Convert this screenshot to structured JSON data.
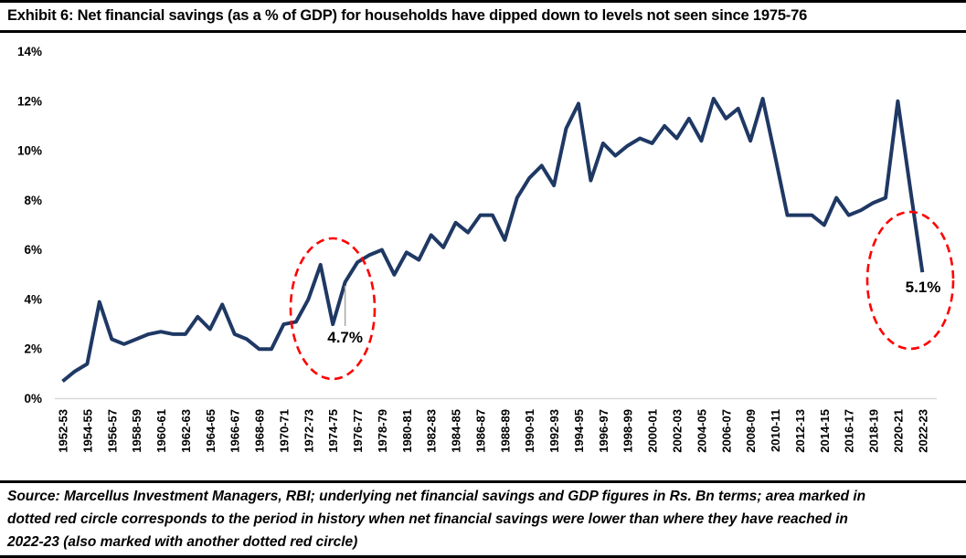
{
  "header": {
    "title": "Exhibit 6: Net financial savings (as a % of GDP) for households have dipped down to levels not seen since 1975-76"
  },
  "chart_data": {
    "type": "line",
    "title": "Net financial savings of households as a % of GDP, 1952-53 to 2022-23",
    "series_name": "Net financial savings (% of GDP)",
    "line_color": "#1F3864",
    "axis_line_color": "#D9D9D9",
    "highlight_color": "#FF0000",
    "leader_line_color": "#A6A6A6",
    "ylim": [
      0,
      14
    ],
    "ytick_labels": [
      "0%",
      "2%",
      "4%",
      "6%",
      "8%",
      "10%",
      "12%",
      "14%"
    ],
    "xtick_every": 2,
    "grid": "off",
    "legend": "none",
    "x": [
      "1952-53",
      "1953-54",
      "1954-55",
      "1955-56",
      "1956-57",
      "1957-58",
      "1958-59",
      "1959-60",
      "1960-61",
      "1961-62",
      "1962-63",
      "1963-64",
      "1964-65",
      "1965-66",
      "1966-67",
      "1967-68",
      "1968-69",
      "1969-70",
      "1970-71",
      "1971-72",
      "1972-73",
      "1973-74",
      "1974-75",
      "1975-76",
      "1976-77",
      "1977-78",
      "1978-79",
      "1979-80",
      "1980-81",
      "1981-82",
      "1982-83",
      "1983-84",
      "1984-85",
      "1985-86",
      "1986-87",
      "1987-88",
      "1988-89",
      "1989-90",
      "1990-91",
      "1991-92",
      "1992-93",
      "1993-94",
      "1994-95",
      "1995-96",
      "1996-97",
      "1997-98",
      "1998-99",
      "1999-00",
      "2000-01",
      "2001-02",
      "2002-03",
      "2003-04",
      "2004-05",
      "2005-06",
      "2006-07",
      "2007-08",
      "2008-09",
      "2009-10",
      "2010-11",
      "2011-12",
      "2012-13",
      "2013-14",
      "2014-15",
      "2015-16",
      "2016-17",
      "2017-18",
      "2018-19",
      "2019-20",
      "2020-21",
      "2021-22",
      "2022-23"
    ],
    "values": [
      0.7,
      1.1,
      1.4,
      3.9,
      2.4,
      2.2,
      2.4,
      2.6,
      2.7,
      2.6,
      2.6,
      3.3,
      2.8,
      3.8,
      2.6,
      2.4,
      2.0,
      2.0,
      3.0,
      3.1,
      4.0,
      5.4,
      3.0,
      4.7,
      5.5,
      5.8,
      6.0,
      5.0,
      5.9,
      5.6,
      6.6,
      6.1,
      7.1,
      6.7,
      7.4,
      7.4,
      6.4,
      8.1,
      8.9,
      9.4,
      8.6,
      10.9,
      11.9,
      8.8,
      10.3,
      9.8,
      10.2,
      10.5,
      10.3,
      11.0,
      10.5,
      11.3,
      10.4,
      12.1,
      11.3,
      11.7,
      10.4,
      12.1,
      9.8,
      7.4,
      7.4,
      7.4,
      7.0,
      8.1,
      7.4,
      7.6,
      7.9,
      8.1,
      12.0,
      8.5,
      5.1
    ],
    "annotations": [
      {
        "label": "4.7%",
        "year": "1975-76",
        "value": 4.7
      },
      {
        "label": "5.1%",
        "year": "2022-23",
        "value": 5.1
      }
    ],
    "highlight_circles": [
      {
        "marks": "1973-74 to 1976-77 trough region",
        "color": "#FF0000"
      },
      {
        "marks": "2022-23 dip",
        "color": "#FF0000"
      }
    ]
  },
  "source_note": {
    "lines": [
      "Source: Marcellus Investment Managers, RBI; underlying net financial savings and GDP figures in Rs. Bn terms; area marked in",
      "dotted red circle corresponds to the period in history when net financial savings were lower than where they have reached in",
      "2022-23 (also marked with another dotted red circle)"
    ]
  }
}
